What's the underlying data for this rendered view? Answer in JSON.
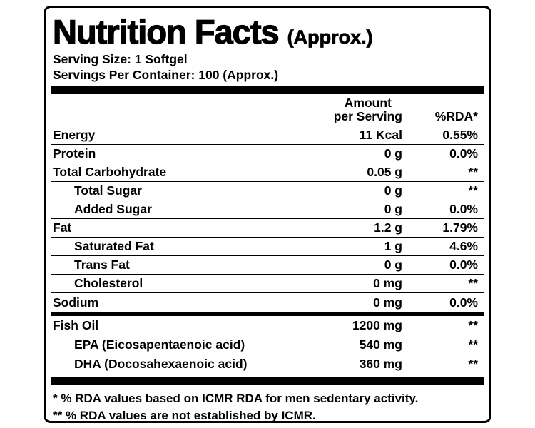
{
  "label": {
    "title": "Nutrition Facts",
    "title_suffix": "(Approx.)",
    "serving_size": "Serving Size: 1 Softgel",
    "servings_per_container": "Servings Per Container: 100 (Approx.)",
    "header": {
      "amount_line1": "Amount",
      "amount_line2": "per Serving",
      "rda": "%RDA*"
    },
    "nutrients": [
      {
        "name": "Energy",
        "amount": "11 Kcal",
        "rda": "0.55%"
      },
      {
        "name": "Protein",
        "amount": "0 g",
        "rda": "0.0%"
      },
      {
        "name": "Total Carbohydrate",
        "amount": "0.05 g",
        "rda": "**"
      },
      {
        "name": "Total Sugar",
        "amount": "0 g",
        "rda": "**"
      },
      {
        "name": "Added Sugar",
        "amount": "0 g",
        "rda": "0.0%"
      },
      {
        "name": "Fat",
        "amount": "1.2 g",
        "rda": "1.79%"
      },
      {
        "name": "Saturated Fat",
        "amount": "1 g",
        "rda": "4.6%"
      },
      {
        "name": "Trans Fat",
        "amount": "0 g",
        "rda": "0.0%"
      },
      {
        "name": "Cholesterol",
        "amount": "0 mg",
        "rda": "**"
      },
      {
        "name": "Sodium",
        "amount": "0 mg",
        "rda": "0.0%"
      }
    ],
    "supplement": [
      {
        "name": "Fish Oil",
        "amount": "1200 mg",
        "rda": "**"
      },
      {
        "name": "EPA (Eicosapentaenoic acid)",
        "amount": "540 mg",
        "rda": "**"
      },
      {
        "name": "DHA (Docosahexaenoic acid)",
        "amount": "360 mg",
        "rda": "**"
      }
    ],
    "footnotes": [
      "* % RDA values based on ICMR RDA for men sedentary activity.",
      "** % RDA values are not established by ICMR."
    ]
  }
}
